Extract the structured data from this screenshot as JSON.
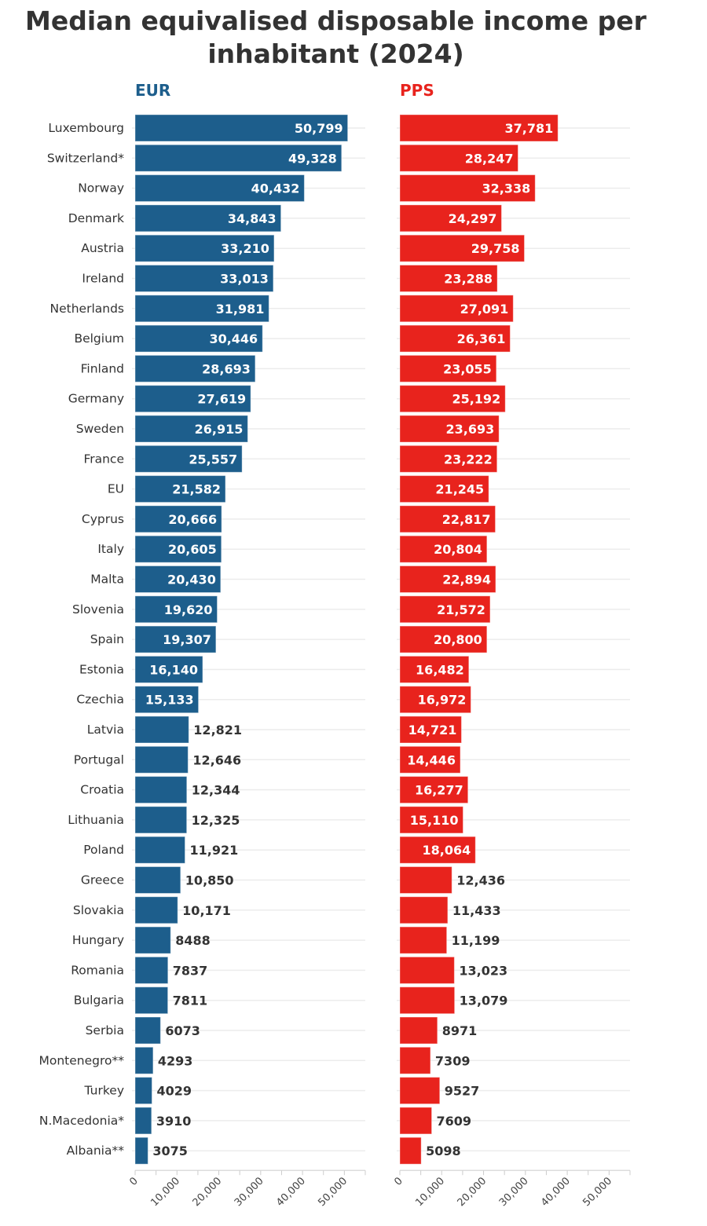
{
  "chart_data": {
    "type": "bar",
    "orientation": "horizontal",
    "title": "Median equivalised disposable income per inhabitant (2024)",
    "categories": [
      "Luxembourg",
      "Switzerland*",
      "Norway",
      "Denmark",
      "Austria",
      "Ireland",
      "Netherlands",
      "Belgium",
      "Finland",
      "Germany",
      "Sweden",
      "France",
      "EU",
      "Cyprus",
      "Italy",
      "Malta",
      "Slovenia",
      "Spain",
      "Estonia",
      "Czechia",
      "Latvia",
      "Portugal",
      "Croatia",
      "Lithuania",
      "Poland",
      "Greece",
      "Slovakia",
      "Hungary",
      "Romania",
      "Bulgaria",
      "Serbia",
      "Montenegro**",
      "Turkey",
      "N.Macedonia*",
      "Albania**"
    ],
    "series": [
      {
        "name": "EUR",
        "color": "#1d5e8c",
        "values": [
          50799,
          49328,
          40432,
          34843,
          33210,
          33013,
          31981,
          30446,
          28693,
          27619,
          26915,
          25557,
          21582,
          20666,
          20605,
          20430,
          19620,
          19307,
          16140,
          15133,
          12821,
          12646,
          12344,
          12325,
          11921,
          10850,
          10171,
          8488,
          7837,
          7811,
          6073,
          4293,
          4029,
          3910,
          3075
        ]
      },
      {
        "name": "PPS",
        "color": "#e8231d",
        "values": [
          37781,
          28247,
          32338,
          24297,
          29758,
          23288,
          27091,
          26361,
          23055,
          25192,
          23693,
          23222,
          21245,
          22817,
          20804,
          22894,
          21572,
          20800,
          16482,
          16972,
          14721,
          14446,
          16277,
          15110,
          18064,
          12436,
          11433,
          11199,
          13023,
          13079,
          8971,
          7309,
          9527,
          7609,
          5098
        ]
      }
    ],
    "xlim": [
      0,
      55000
    ],
    "xticks": [
      0,
      10000,
      20000,
      30000,
      40000,
      50000
    ],
    "xtick_labels": [
      "0",
      "10,000",
      "20,000",
      "30,000",
      "40,000",
      "50,000"
    ],
    "grid": true,
    "legend": "none"
  }
}
